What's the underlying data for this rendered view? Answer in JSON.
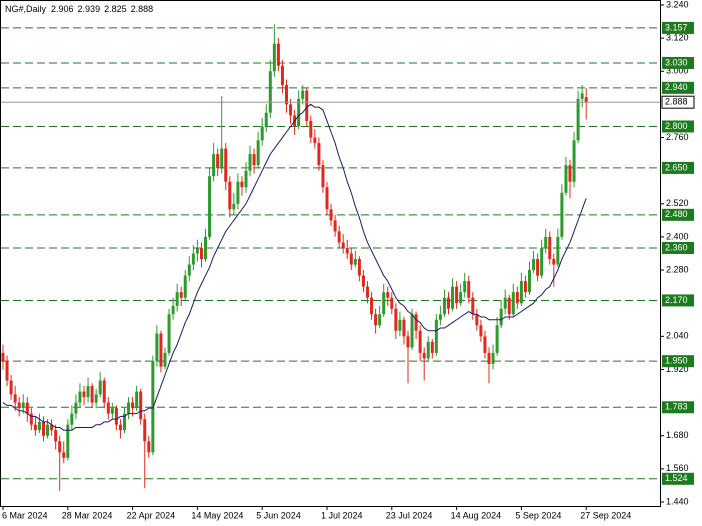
{
  "chart_data": {
    "type": "candlestick",
    "title": "NG#,Daily",
    "categories": [
      "6 Mar 2024",
      null,
      null,
      null,
      null,
      null,
      null,
      null,
      null,
      null,
      null,
      null,
      null,
      null,
      null,
      null,
      "28 Mar 2024",
      null,
      null,
      null,
      null,
      null,
      null,
      null,
      null,
      null,
      null,
      null,
      null,
      null,
      null,
      null,
      "22 Apr 2024",
      null,
      null,
      null,
      null,
      null,
      null,
      null,
      null,
      null,
      null,
      null,
      null,
      null,
      null,
      null,
      "14 May 2024",
      null,
      null,
      null,
      null,
      null,
      null,
      null,
      null,
      null,
      null,
      null,
      null,
      null,
      null,
      null,
      "5 Jun 2024",
      null,
      null,
      null,
      null,
      null,
      null,
      null,
      null,
      null,
      null,
      null,
      null,
      null,
      null,
      null,
      "1 Jul 2024",
      null,
      null,
      null,
      null,
      null,
      null,
      null,
      null,
      null,
      null,
      null,
      null,
      null,
      null,
      null,
      "23 Jul 2024",
      null,
      null,
      null,
      null,
      null,
      null,
      null,
      null,
      null,
      null,
      null,
      null,
      null,
      null,
      null,
      "14 Aug 2024",
      null,
      null,
      null,
      null,
      null,
      null,
      null,
      null,
      null,
      null,
      null,
      null,
      null,
      null,
      null,
      "5 Sep 2024",
      null,
      null,
      null,
      null,
      null,
      null,
      null,
      null,
      null,
      null,
      null,
      null,
      null,
      null,
      null,
      "27 Sep 2024"
    ],
    "ohlc": [
      [
        1.98,
        2.01,
        1.92,
        1.95
      ],
      [
        1.95,
        1.97,
        1.86,
        1.88
      ],
      [
        1.88,
        1.9,
        1.81,
        1.83
      ],
      [
        1.83,
        1.86,
        1.77,
        1.8
      ],
      [
        1.8,
        1.82,
        1.75,
        1.78
      ],
      [
        1.78,
        1.83,
        1.76,
        1.8
      ],
      [
        1.8,
        1.82,
        1.73,
        1.76
      ],
      [
        1.76,
        1.78,
        1.7,
        1.72
      ],
      [
        1.72,
        1.75,
        1.68,
        1.7
      ],
      [
        1.7,
        1.76,
        1.69,
        1.73
      ],
      [
        1.73,
        1.75,
        1.66,
        1.68
      ],
      [
        1.68,
        1.74,
        1.67,
        1.72
      ],
      [
        1.72,
        1.74,
        1.68,
        1.7
      ],
      [
        1.7,
        1.72,
        1.63,
        1.66
      ],
      [
        1.66,
        1.68,
        1.48,
        1.62
      ],
      [
        1.62,
        1.66,
        1.58,
        1.6
      ],
      [
        1.6,
        1.74,
        1.59,
        1.72
      ],
      [
        1.72,
        1.79,
        1.7,
        1.76
      ],
      [
        1.76,
        1.83,
        1.74,
        1.8
      ],
      [
        1.8,
        1.87,
        1.78,
        1.84
      ],
      [
        1.84,
        1.86,
        1.79,
        1.82
      ],
      [
        1.82,
        1.89,
        1.8,
        1.86
      ],
      [
        1.86,
        1.87,
        1.78,
        1.8
      ],
      [
        1.8,
        1.85,
        1.78,
        1.83
      ],
      [
        1.83,
        1.91,
        1.82,
        1.88
      ],
      [
        1.88,
        1.89,
        1.78,
        1.8
      ],
      [
        1.8,
        1.82,
        1.74,
        1.76
      ],
      [
        1.76,
        1.8,
        1.74,
        1.78
      ],
      [
        1.78,
        1.79,
        1.7,
        1.72
      ],
      [
        1.72,
        1.74,
        1.67,
        1.7
      ],
      [
        1.7,
        1.78,
        1.69,
        1.76
      ],
      [
        1.76,
        1.82,
        1.74,
        1.8
      ],
      [
        1.8,
        1.82,
        1.75,
        1.78
      ],
      [
        1.78,
        1.86,
        1.77,
        1.84
      ],
      [
        1.84,
        1.85,
        1.72,
        1.74
      ],
      [
        1.74,
        1.76,
        1.49,
        1.66
      ],
      [
        1.66,
        1.68,
        1.6,
        1.62
      ],
      [
        1.62,
        1.97,
        1.61,
        1.95
      ],
      [
        1.95,
        2.08,
        1.93,
        2.05
      ],
      [
        2.05,
        2.06,
        1.91,
        1.93
      ],
      [
        1.93,
        2.0,
        1.92,
        1.98
      ],
      [
        1.98,
        2.14,
        1.97,
        2.12
      ],
      [
        2.12,
        2.18,
        2.1,
        2.15
      ],
      [
        2.15,
        2.23,
        2.13,
        2.2
      ],
      [
        2.2,
        2.22,
        2.15,
        2.18
      ],
      [
        2.18,
        2.28,
        2.17,
        2.26
      ],
      [
        2.26,
        2.33,
        2.24,
        2.3
      ],
      [
        2.3,
        2.37,
        2.28,
        2.34
      ],
      [
        2.34,
        2.39,
        2.31,
        2.36
      ],
      [
        2.36,
        2.38,
        2.29,
        2.32
      ],
      [
        2.32,
        2.43,
        2.31,
        2.4
      ],
      [
        2.4,
        2.65,
        2.39,
        2.62
      ],
      [
        2.62,
        2.74,
        2.6,
        2.7
      ],
      [
        2.7,
        2.72,
        2.62,
        2.65
      ],
      [
        2.65,
        2.91,
        2.63,
        2.72
      ],
      [
        2.72,
        2.74,
        2.57,
        2.6
      ],
      [
        2.6,
        2.62,
        2.47,
        2.5
      ],
      [
        2.5,
        2.56,
        2.48,
        2.52
      ],
      [
        2.52,
        2.63,
        2.5,
        2.6
      ],
      [
        2.6,
        2.62,
        2.55,
        2.58
      ],
      [
        2.58,
        2.67,
        2.56,
        2.64
      ],
      [
        2.64,
        2.73,
        2.62,
        2.7
      ],
      [
        2.7,
        2.72,
        2.63,
        2.66
      ],
      [
        2.66,
        2.78,
        2.65,
        2.75
      ],
      [
        2.75,
        2.83,
        2.73,
        2.8
      ],
      [
        2.8,
        2.88,
        2.78,
        2.85
      ],
      [
        2.85,
        3.04,
        2.83,
        3.0
      ],
      [
        3.0,
        3.17,
        2.98,
        3.1
      ],
      [
        3.1,
        3.12,
        3.0,
        3.02
      ],
      [
        3.02,
        3.04,
        2.92,
        2.95
      ],
      [
        2.95,
        2.97,
        2.85,
        2.88
      ],
      [
        2.88,
        2.9,
        2.81,
        2.84
      ],
      [
        2.84,
        2.86,
        2.77,
        2.8
      ],
      [
        2.8,
        2.93,
        2.79,
        2.9
      ],
      [
        2.9,
        2.95,
        2.88,
        2.93
      ],
      [
        2.93,
        2.94,
        2.8,
        2.82
      ],
      [
        2.82,
        2.84,
        2.74,
        2.76
      ],
      [
        2.76,
        2.79,
        2.72,
        2.74
      ],
      [
        2.74,
        2.76,
        2.64,
        2.66
      ],
      [
        2.66,
        2.68,
        2.56,
        2.58
      ],
      [
        2.58,
        2.6,
        2.48,
        2.5
      ],
      [
        2.5,
        2.52,
        2.44,
        2.46
      ],
      [
        2.46,
        2.48,
        2.4,
        2.42
      ],
      [
        2.42,
        2.44,
        2.36,
        2.38
      ],
      [
        2.38,
        2.41,
        2.34,
        2.36
      ],
      [
        2.36,
        2.39,
        2.32,
        2.34
      ],
      [
        2.34,
        2.36,
        2.28,
        2.3
      ],
      [
        2.3,
        2.35,
        2.29,
        2.32
      ],
      [
        2.32,
        2.33,
        2.24,
        2.26
      ],
      [
        2.26,
        2.28,
        2.2,
        2.22
      ],
      [
        2.22,
        2.24,
        2.16,
        2.18
      ],
      [
        2.18,
        2.2,
        2.1,
        2.12
      ],
      [
        2.12,
        2.14,
        2.05,
        2.08
      ],
      [
        2.08,
        2.15,
        2.07,
        2.12
      ],
      [
        2.12,
        2.23,
        2.11,
        2.2
      ],
      [
        2.2,
        2.22,
        2.15,
        2.18
      ],
      [
        2.18,
        2.2,
        2.12,
        2.14
      ],
      [
        2.14,
        2.16,
        2.03,
        2.06
      ],
      [
        2.06,
        2.13,
        2.04,
        2.1
      ],
      [
        2.1,
        2.11,
        2.01,
        2.04
      ],
      [
        2.04,
        2.06,
        1.87,
        2.0
      ],
      [
        2.0,
        2.14,
        1.99,
        2.12
      ],
      [
        2.12,
        2.13,
        2.03,
        2.06
      ],
      [
        2.06,
        2.08,
        1.95,
        1.98
      ],
      [
        1.98,
        2.0,
        1.88,
        1.96
      ],
      [
        1.96,
        2.04,
        1.95,
        2.02
      ],
      [
        2.02,
        2.03,
        1.96,
        1.98
      ],
      [
        1.98,
        2.12,
        1.97,
        2.1
      ],
      [
        2.1,
        2.15,
        2.08,
        2.12
      ],
      [
        2.12,
        2.21,
        2.11,
        2.18
      ],
      [
        2.18,
        2.2,
        2.12,
        2.14
      ],
      [
        2.14,
        2.25,
        2.13,
        2.22
      ],
      [
        2.22,
        2.24,
        2.14,
        2.16
      ],
      [
        2.16,
        2.23,
        2.15,
        2.2
      ],
      [
        2.2,
        2.27,
        2.18,
        2.24
      ],
      [
        2.24,
        2.26,
        2.16,
        2.18
      ],
      [
        2.18,
        2.2,
        2.1,
        2.12
      ],
      [
        2.12,
        2.14,
        2.06,
        2.08
      ],
      [
        2.08,
        2.1,
        2.02,
        2.04
      ],
      [
        2.04,
        2.06,
        1.96,
        1.98
      ],
      [
        1.98,
        2.0,
        1.87,
        1.94
      ],
      [
        1.94,
        2.01,
        1.92,
        1.98
      ],
      [
        1.98,
        2.11,
        1.97,
        2.08
      ],
      [
        2.08,
        2.17,
        2.07,
        2.14
      ],
      [
        2.14,
        2.21,
        2.12,
        2.18
      ],
      [
        2.18,
        2.19,
        2.1,
        2.12
      ],
      [
        2.12,
        2.23,
        2.11,
        2.2
      ],
      [
        2.2,
        2.22,
        2.14,
        2.16
      ],
      [
        2.16,
        2.27,
        2.15,
        2.24
      ],
      [
        2.24,
        2.26,
        2.18,
        2.2
      ],
      [
        2.2,
        2.31,
        2.19,
        2.28
      ],
      [
        2.28,
        2.35,
        2.27,
        2.32
      ],
      [
        2.32,
        2.34,
        2.24,
        2.26
      ],
      [
        2.26,
        2.39,
        2.25,
        2.36
      ],
      [
        2.36,
        2.43,
        2.34,
        2.4
      ],
      [
        2.4,
        2.42,
        2.3,
        2.32
      ],
      [
        2.32,
        2.34,
        2.22,
        2.3
      ],
      [
        2.3,
        2.43,
        2.29,
        2.4
      ],
      [
        2.4,
        2.59,
        2.39,
        2.56
      ],
      [
        2.56,
        2.69,
        2.55,
        2.66
      ],
      [
        2.66,
        2.68,
        2.54,
        2.6
      ],
      [
        2.6,
        2.78,
        2.58,
        2.75
      ],
      [
        2.75,
        2.93,
        2.74,
        2.9
      ],
      [
        2.9,
        2.95,
        2.87,
        2.92
      ],
      [
        2.906,
        2.939,
        2.825,
        2.888
      ]
    ],
    "ma": [
      1.8,
      1.79,
      1.79,
      1.78,
      1.77,
      1.77,
      1.76,
      1.75,
      1.75,
      1.74,
      1.73,
      1.73,
      1.72,
      1.71,
      1.71,
      1.7,
      1.7,
      1.7,
      1.71,
      1.71,
      1.71,
      1.71,
      1.71,
      1.72,
      1.72,
      1.73,
      1.73,
      1.74,
      1.74,
      1.75,
      1.75,
      1.76,
      1.76,
      1.76,
      1.77,
      1.77,
      1.78,
      1.78,
      1.82,
      1.86,
      1.9,
      1.94,
      1.98,
      2.01,
      2.05,
      2.09,
      2.12,
      2.16,
      2.2,
      2.23,
      2.26,
      2.29,
      2.33,
      2.36,
      2.39,
      2.42,
      2.44,
      2.46,
      2.48,
      2.5,
      2.52,
      2.55,
      2.58,
      2.61,
      2.64,
      2.67,
      2.7,
      2.72,
      2.74,
      2.76,
      2.78,
      2.8,
      2.82,
      2.84,
      2.85,
      2.87,
      2.88,
      2.87,
      2.87,
      2.86,
      2.82,
      2.78,
      2.74,
      2.69,
      2.65,
      2.6,
      2.56,
      2.51,
      2.47,
      2.42,
      2.38,
      2.35,
      2.32,
      2.29,
      2.26,
      2.24,
      2.21,
      2.18,
      2.16,
      2.15,
      2.13,
      2.12,
      2.1,
      2.09,
      2.07,
      2.06,
      2.06,
      2.06,
      2.07,
      2.07,
      2.08,
      2.09,
      2.1,
      2.11,
      2.12,
      2.13,
      2.12,
      2.12,
      2.11,
      2.11,
      2.1,
      2.1,
      2.1,
      2.1,
      2.11,
      2.11,
      2.11,
      2.12,
      2.13,
      2.14,
      2.15,
      2.16,
      2.18,
      2.19,
      2.21,
      2.22,
      2.25,
      2.28,
      2.32,
      2.35,
      2.38,
      2.42,
      2.46,
      2.5,
      2.54
    ],
    "ylim": [
      1.44,
      3.24
    ],
    "yticks": [
      {
        "value": 3.24,
        "label": "3.240"
      },
      {
        "value": 3.12,
        "label": "3.120"
      },
      {
        "value": 3.0,
        "label": "3.000"
      },
      {
        "value": 2.76,
        "label": "2.760"
      },
      {
        "value": 2.52,
        "label": "2.520"
      },
      {
        "value": 2.4,
        "label": "2.400"
      },
      {
        "value": 2.28,
        "label": "2.280"
      },
      {
        "value": 2.04,
        "label": "2.040"
      },
      {
        "value": 1.92,
        "label": "1.920"
      },
      {
        "value": 1.68,
        "label": "1.680"
      },
      {
        "value": 1.56,
        "label": "1.560"
      },
      {
        "value": 1.44,
        "label": "1.440"
      }
    ],
    "levels": [
      3.157,
      {
        "value": 3.03,
        "label": "3.030"
      },
      {
        "value": 2.94,
        "label": "2.940"
      },
      {
        "value": 2.8,
        "label": "2.800"
      },
      {
        "value": 2.65,
        "label": "2.650"
      },
      {
        "value": 2.48,
        "label": "2.480"
      },
      {
        "value": 2.36,
        "label": "2.360"
      },
      {
        "value": 2.17,
        "label": "2.170"
      },
      {
        "value": 1.95,
        "label": "1.950"
      },
      1.783,
      1.524
    ],
    "up_color": "#2e9a2e",
    "down_color": "#e0281e",
    "ma_color": "#1b1b6b",
    "level_color": "#1e7a1e"
  }
}
